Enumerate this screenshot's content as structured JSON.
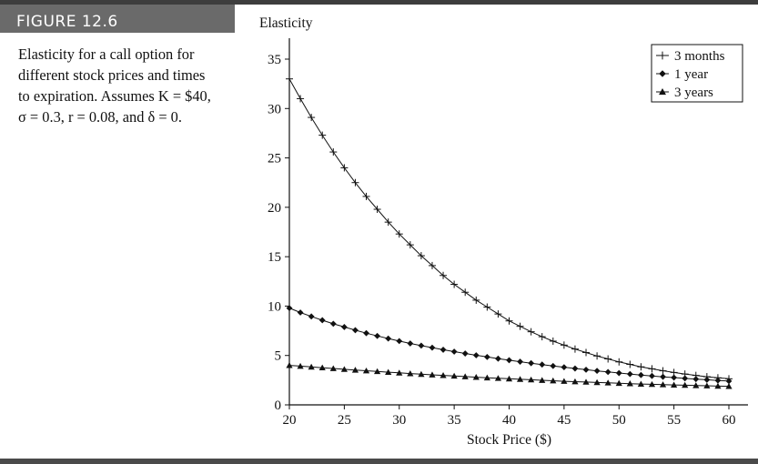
{
  "figure": {
    "label": "FIGURE 12.6",
    "caption_text": "Elasticity for a call option for different stock prices and times to expiration. Assumes",
    "caption_params": "K = $40, σ = 0.3, r = 0.08, and δ = 0."
  },
  "chart_data": {
    "type": "line",
    "title": "",
    "xlabel": "Stock Price ($)",
    "ylabel": "Elasticity",
    "xlim": [
      20,
      60
    ],
    "ylim": [
      0,
      35
    ],
    "xticks": [
      20,
      25,
      30,
      35,
      40,
      45,
      50,
      55,
      60
    ],
    "yticks": [
      0,
      5,
      10,
      15,
      20,
      25,
      30,
      35
    ],
    "grid": false,
    "legend_position": "top-right",
    "x": [
      20,
      21,
      22,
      23,
      24,
      25,
      26,
      27,
      28,
      29,
      30,
      31,
      32,
      33,
      34,
      35,
      36,
      37,
      38,
      39,
      40,
      41,
      42,
      43,
      44,
      45,
      46,
      47,
      48,
      49,
      50,
      51,
      52,
      53,
      54,
      55,
      56,
      57,
      58,
      59,
      60
    ],
    "series": [
      {
        "name": "3 months",
        "marker": "plus",
        "values": [
          33.0,
          31.0,
          29.1,
          27.3,
          25.6,
          24.0,
          22.5,
          21.1,
          19.8,
          18.5,
          17.3,
          16.2,
          15.1,
          14.1,
          13.1,
          12.2,
          11.4,
          10.6,
          9.9,
          9.2,
          8.5,
          7.95,
          7.4,
          6.9,
          6.45,
          6.05,
          5.65,
          5.3,
          4.95,
          4.65,
          4.35,
          4.1,
          3.85,
          3.65,
          3.45,
          3.28,
          3.12,
          2.98,
          2.85,
          2.74,
          2.64
        ]
      },
      {
        "name": "1 year",
        "marker": "diamond",
        "values": [
          9.8,
          9.35,
          8.95,
          8.57,
          8.21,
          7.88,
          7.56,
          7.26,
          6.98,
          6.71,
          6.46,
          6.22,
          6.0,
          5.79,
          5.58,
          5.39,
          5.2,
          5.02,
          4.85,
          4.68,
          4.52,
          4.37,
          4.22,
          4.08,
          3.94,
          3.81,
          3.68,
          3.56,
          3.44,
          3.33,
          3.22,
          3.12,
          3.02,
          2.93,
          2.84,
          2.76,
          2.68,
          2.61,
          2.54,
          2.47,
          2.41
        ]
      },
      {
        "name": "3 years",
        "marker": "triangle",
        "values": [
          4.0,
          3.92,
          3.84,
          3.76,
          3.68,
          3.6,
          3.52,
          3.45,
          3.38,
          3.31,
          3.24,
          3.17,
          3.1,
          3.04,
          2.98,
          2.92,
          2.86,
          2.8,
          2.74,
          2.69,
          2.64,
          2.59,
          2.54,
          2.49,
          2.44,
          2.39,
          2.35,
          2.31,
          2.27,
          2.23,
          2.19,
          2.15,
          2.11,
          2.08,
          2.05,
          2.02,
          1.99,
          1.96,
          1.93,
          1.9,
          1.88
        ]
      }
    ]
  }
}
